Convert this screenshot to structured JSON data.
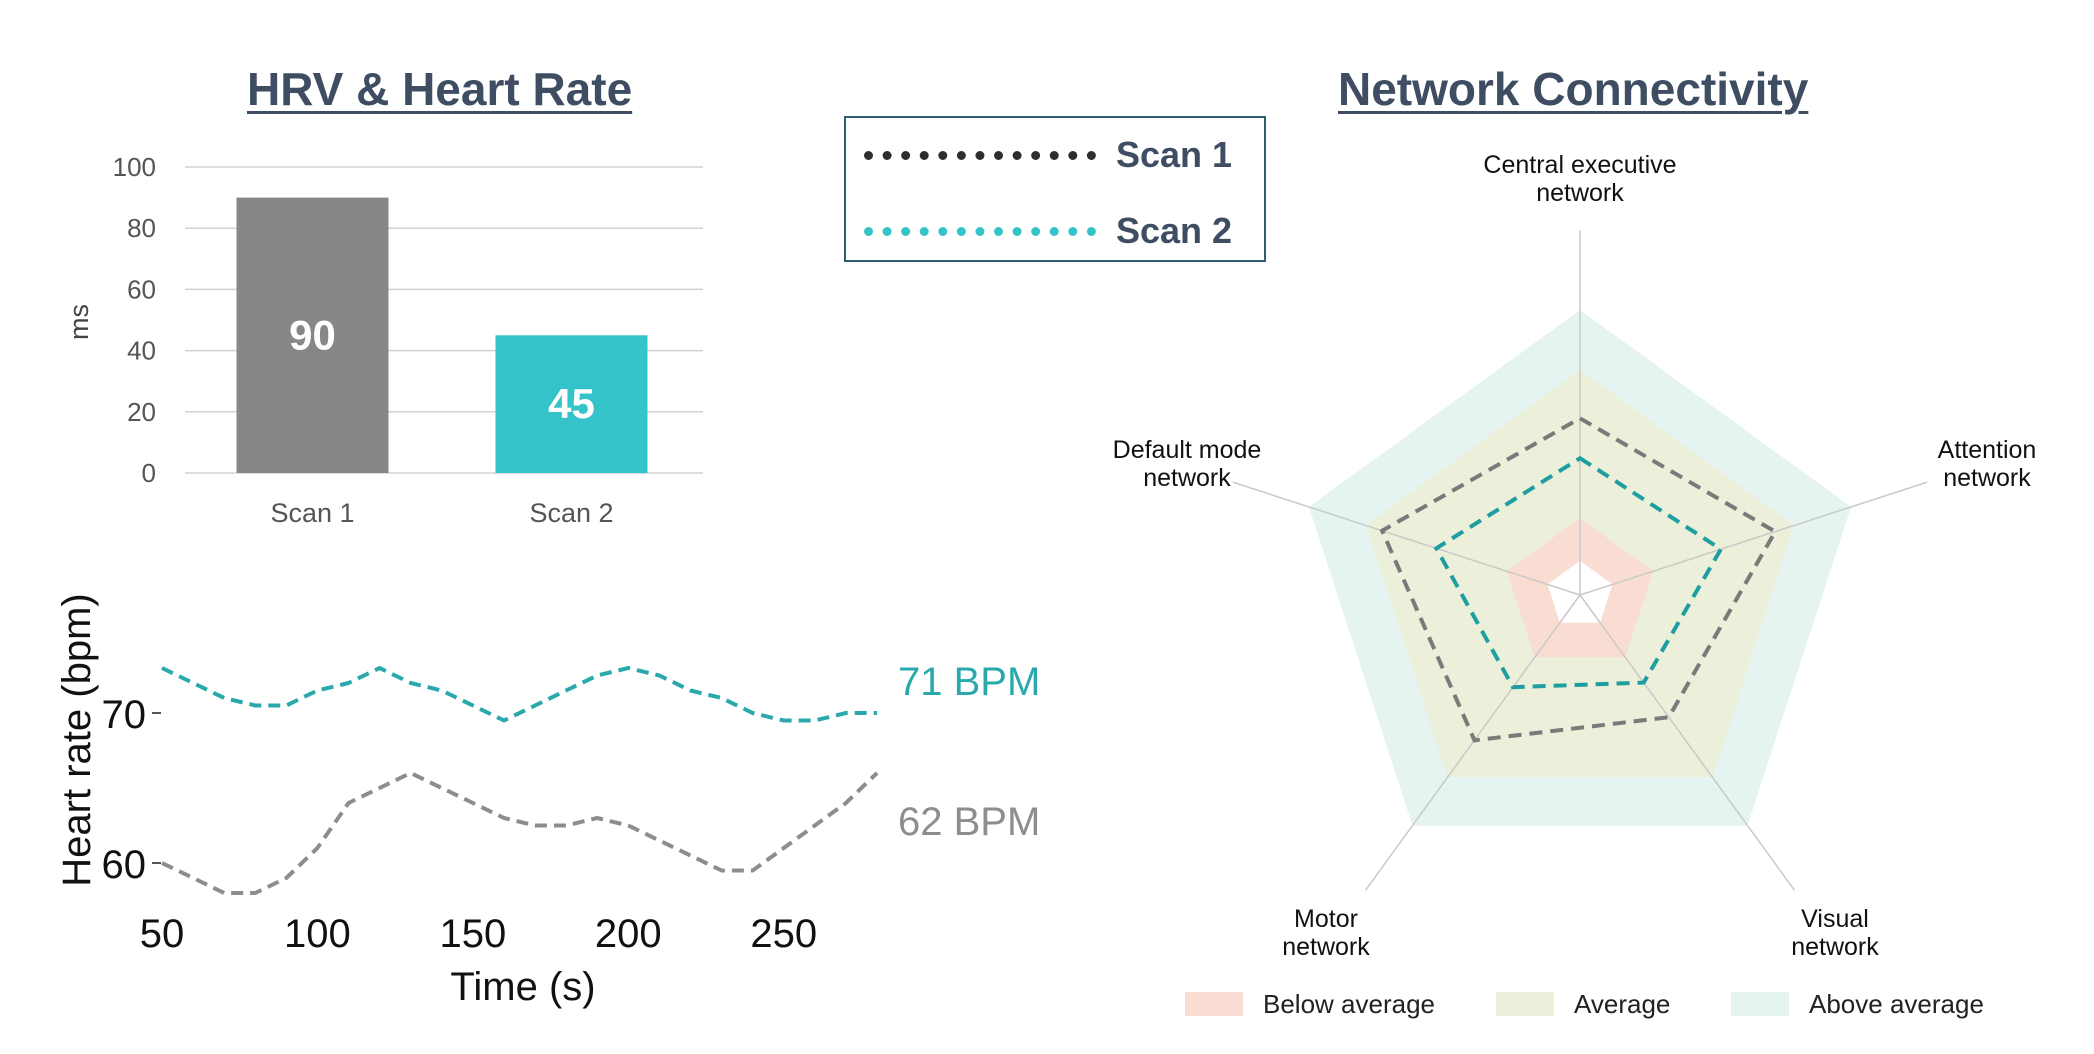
{
  "chart_data": [
    {
      "type": "bar",
      "title": "HRV & Heart Rate",
      "ylabel": "ms",
      "xlabel": "",
      "ylim": [
        0,
        100
      ],
      "yticks": [
        0,
        20,
        40,
        60,
        80,
        100
      ],
      "categories": [
        "Scan 1",
        "Scan 2"
      ],
      "values": [
        90,
        45
      ],
      "value_labels": [
        "90",
        "45"
      ],
      "colors": [
        "#878787",
        "#35c3ca"
      ],
      "grid": true
    },
    {
      "type": "line",
      "xlabel": "Time (s)",
      "ylabel": "Heart rate (bpm)",
      "xlim": [
        50,
        280
      ],
      "ylim": [
        55,
        77
      ],
      "xticks": [
        50,
        100,
        150,
        200,
        250
      ],
      "yticks": [
        60,
        70
      ],
      "series": [
        {
          "name": "Scan 2",
          "end_label": "71 BPM",
          "color": "#2aa9ad",
          "x": [
            50,
            60,
            70,
            80,
            90,
            100,
            110,
            120,
            130,
            140,
            150,
            160,
            170,
            180,
            190,
            200,
            210,
            220,
            230,
            240,
            250,
            260,
            270,
            280
          ],
          "y": [
            73,
            72,
            71,
            70.5,
            70.5,
            71.5,
            72,
            73,
            72,
            71.5,
            70.5,
            69.5,
            70.5,
            71.5,
            72.5,
            73,
            72.5,
            71.5,
            71,
            70,
            69.5,
            69.5,
            70,
            70
          ]
        },
        {
          "name": "Scan 1",
          "end_label": "62 BPM",
          "color": "#8d8d8d",
          "x": [
            50,
            60,
            70,
            80,
            90,
            100,
            110,
            120,
            130,
            140,
            150,
            160,
            170,
            180,
            190,
            200,
            210,
            220,
            230,
            240,
            250,
            260,
            270,
            280
          ],
          "y": [
            60,
            59,
            58,
            58,
            59,
            61,
            64,
            65,
            66,
            65,
            64,
            63,
            62.5,
            62.5,
            63,
            62.5,
            61.5,
            60.5,
            59.5,
            59.5,
            61,
            62.5,
            64,
            66
          ]
        }
      ]
    },
    {
      "type": "radar",
      "title": "Network Connectivity",
      "axes": [
        [
          "Central executive",
          "network"
        ],
        [
          "Attention",
          "network"
        ],
        [
          "Visual",
          "network"
        ],
        [
          "Motor",
          "network"
        ],
        [
          "Default mode",
          "network"
        ]
      ],
      "max": 100,
      "bands": [
        {
          "name": "Below average",
          "inner": 12,
          "outer": 27,
          "color": "#f9ddd2"
        },
        {
          "name": "Average",
          "inner": 27,
          "outer": 79,
          "color": "#ecefd9"
        },
        {
          "name": "Above average",
          "inner": 79,
          "outer": 100,
          "color": "#e5f4f1"
        }
      ],
      "series": [
        {
          "name": "Scan 1",
          "values": [
            62,
            72,
            53,
            63,
            73
          ],
          "color": "#7a7a7a"
        },
        {
          "name": "Scan 2",
          "values": [
            48,
            52,
            38,
            40,
            53
          ],
          "color": "#1f9ea1"
        }
      ]
    }
  ],
  "legend": {
    "items": [
      {
        "label": "Scan 1",
        "color": "#2e2e2e"
      },
      {
        "label": "Scan 2",
        "color": "#35c3ca"
      }
    ]
  }
}
